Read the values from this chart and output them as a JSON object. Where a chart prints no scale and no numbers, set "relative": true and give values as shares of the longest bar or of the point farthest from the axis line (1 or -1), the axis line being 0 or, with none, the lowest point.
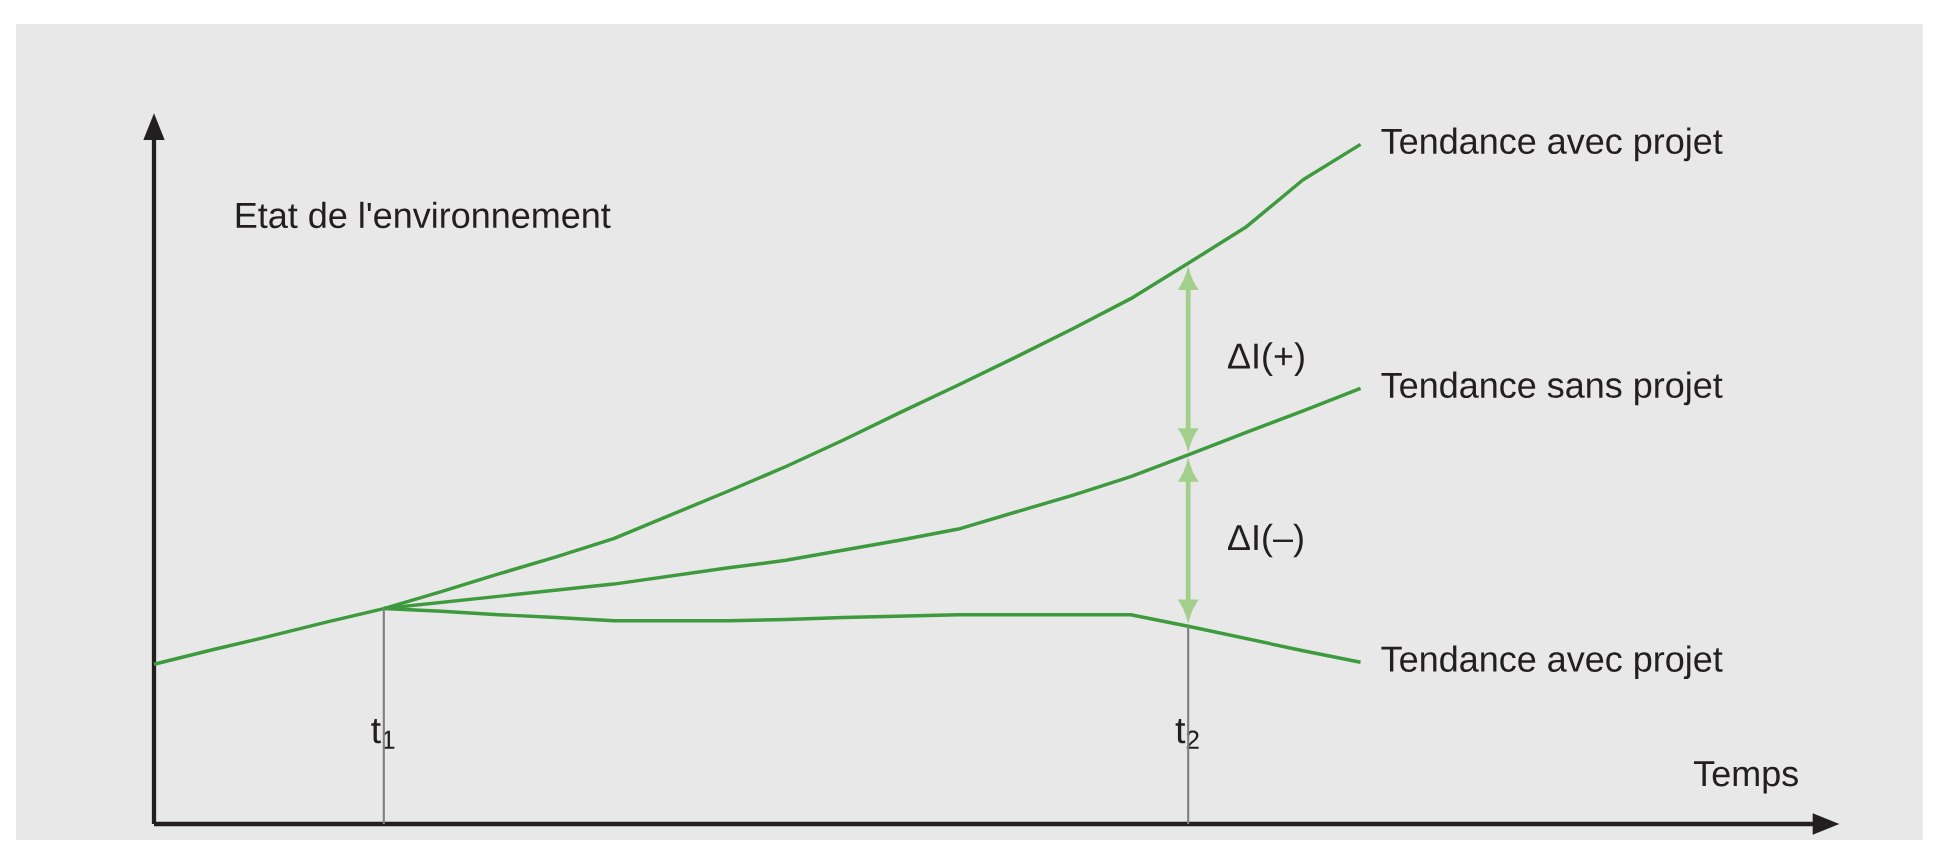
{
  "chart_data": {
    "type": "line",
    "relative": true,
    "ylabel": "Etat de l'environnement",
    "categories": [
      null,
      null,
      null,
      null,
      "t$_{1}$",
      null,
      null,
      null,
      null,
      null,
      null,
      null,
      null,
      null,
      null,
      null,
      null,
      null,
      "t$_{2}$",
      null,
      null,
      null
    ],
    "series": [
      {
        "name": "Tendance avec projet",
        "color": "#3d9a3d",
        "values": [
          null,
          null,
          null,
          null,
          0.317,
          0.342,
          0.368,
          0.393,
          0.42,
          0.455,
          0.49,
          0.526,
          0.565,
          0.606,
          0.646,
          0.687,
          0.729,
          0.773,
          0.825,
          0.878,
          0.948,
          1
        ]
      },
      {
        "name": "Tendance sans projet",
        "color": "#3d9a3d",
        "values": [
          0.235,
          0.256,
          0.276,
          0.297,
          0.317,
          0.326,
          0.335,
          0.344,
          0.353,
          0.365,
          0.377,
          0.388,
          0.403,
          0.418,
          0.434,
          0.459,
          0.484,
          0.511,
          0.543,
          0.576,
          0.608,
          0.641
        ]
      },
      {
        "name": "Tendance avec projet",
        "color": "#3d9a3d",
        "values": [
          null,
          null,
          null,
          null,
          0.317,
          0.313,
          0.308,
          0.304,
          0.299,
          0.299,
          0.299,
          0.301,
          0.304,
          0.306,
          0.308,
          0.308,
          0.308,
          0.308,
          0.291,
          0.273,
          0.255,
          0.238
        ]
      }
    ],
    "ref_lines": [
      {
        "axis": "x",
        "value": "t$_{1}$",
        "color": "#808080"
      },
      {
        "axis": "x",
        "value": "t$_{2}$",
        "color": "#808080"
      }
    ],
    "annotations": [
      "ΔI(+)",
      "ΔI(–)",
      "Temps"
    ]
  }
}
